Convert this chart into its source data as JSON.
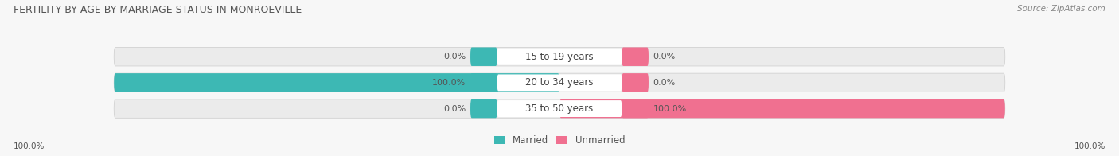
{
  "title": "FERTILITY BY AGE BY MARRIAGE STATUS IN MONROEVILLE",
  "source": "Source: ZipAtlas.com",
  "categories": [
    "15 to 19 years",
    "20 to 34 years",
    "35 to 50 years"
  ],
  "married": [
    0.0,
    100.0,
    0.0
  ],
  "unmarried": [
    0.0,
    0.0,
    100.0
  ],
  "married_color": "#3db8b4",
  "unmarried_color": "#f07090",
  "bar_bg_color": "#e0e0e0",
  "bar_bg_light": "#ebebeb",
  "title_color": "#555555",
  "source_color": "#888888",
  "label_color": "#444444",
  "value_color": "#555555",
  "legend_label_color": "#555555",
  "bg_color": "#f7f7f7",
  "fig_width": 14.06,
  "fig_height": 1.96,
  "dpi": 100
}
